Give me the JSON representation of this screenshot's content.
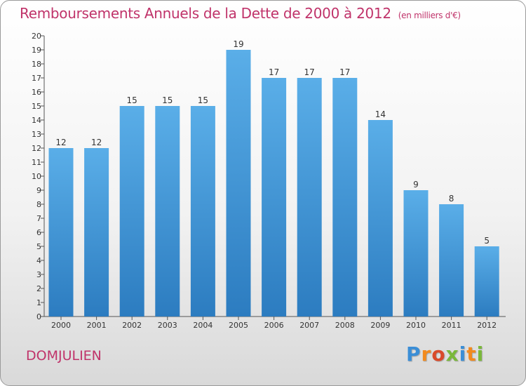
{
  "chart_data": {
    "type": "bar",
    "title": "Remboursements Annuels de la Dette de 2000 à 2012",
    "unit_label": "(en milliers d'€)",
    "categories": [
      "2000",
      "2001",
      "2002",
      "2003",
      "2004",
      "2005",
      "2006",
      "2007",
      "2008",
      "2009",
      "2010",
      "2011",
      "2012"
    ],
    "values": [
      12,
      12,
      15,
      15,
      15,
      19,
      17,
      17,
      17,
      14,
      9,
      8,
      5
    ],
    "ylim": [
      0,
      20
    ],
    "yticks": [
      0,
      1,
      2,
      3,
      4,
      5,
      6,
      7,
      8,
      9,
      10,
      11,
      12,
      13,
      14,
      15,
      16,
      17,
      18,
      19,
      20
    ],
    "grid": false,
    "xlabel": "",
    "ylabel": "",
    "colors": {
      "bar_top": "#5aaee8",
      "bar_bottom": "#2c7cc0",
      "text": "#c0336a"
    }
  },
  "footer": {
    "commune": "DOMJULIEN",
    "logo_letters": [
      "P",
      "r",
      "o",
      "x",
      "i",
      "t",
      "i"
    ],
    "logo_colors": [
      "#3b8ed6",
      "#f28a1e",
      "#d94a2a",
      "#7ab83a",
      "#3b8ed6",
      "#f28a1e",
      "#7ab83a"
    ]
  }
}
